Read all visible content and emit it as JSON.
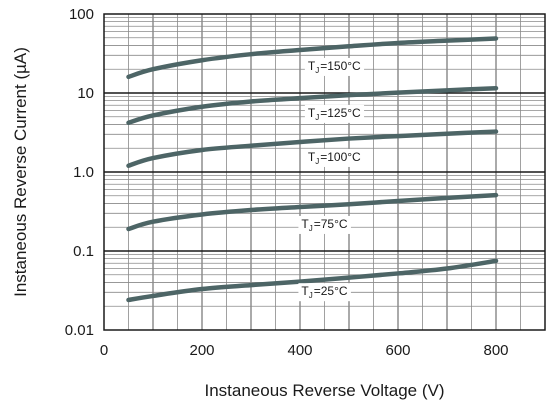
{
  "chart_data": {
    "type": "line",
    "title": "",
    "xlabel": "Instaneous Reverse Voltage (V)",
    "ylabel": "Instaneous Reverse Current (µA)",
    "xlim": [
      0,
      900
    ],
    "ylim": [
      0.01,
      100
    ],
    "yscale": "log",
    "grid": true,
    "x_ticks": [
      0,
      200,
      400,
      600,
      800
    ],
    "x_tick_labels": [
      "0",
      "200",
      "400",
      "600",
      "800"
    ],
    "y_ticks": [
      0.01,
      0.1,
      1,
      10,
      100
    ],
    "y_tick_labels": [
      "0.01",
      "0.1",
      "1.0",
      "10",
      "100"
    ],
    "line_color": "#4d6566",
    "series": [
      {
        "label_main": "T",
        "label_sub": "J",
        "label_rest": "=150°C",
        "label_at_x": 470,
        "label_at_y": 22,
        "x": [
          50,
          100,
          200,
          300,
          400,
          500,
          600,
          700,
          800
        ],
        "y": [
          16,
          20,
          26,
          31,
          35,
          39,
          43,
          46,
          49
        ]
      },
      {
        "label_main": "T",
        "label_sub": "J",
        "label_rest": "=125°C",
        "label_at_x": 470,
        "label_at_y": 5.6,
        "x": [
          50,
          100,
          200,
          300,
          400,
          500,
          600,
          700,
          800
        ],
        "y": [
          4.2,
          5.2,
          6.7,
          7.8,
          8.6,
          9.4,
          10.1,
          10.8,
          11.5
        ]
      },
      {
        "label_main": "T",
        "label_sub": "J",
        "label_rest": "=100°C",
        "label_at_x": 470,
        "label_at_y": 1.55,
        "x": [
          50,
          100,
          200,
          300,
          400,
          500,
          600,
          700,
          800
        ],
        "y": [
          1.2,
          1.5,
          1.9,
          2.15,
          2.4,
          2.65,
          2.85,
          3.05,
          3.25
        ]
      },
      {
        "label_main": "T",
        "label_sub": "J",
        "label_rest": "=75°C",
        "label_at_x": 450,
        "label_at_y": 0.22,
        "x": [
          50,
          100,
          200,
          300,
          400,
          500,
          600,
          700,
          800
        ],
        "y": [
          0.19,
          0.235,
          0.29,
          0.33,
          0.36,
          0.39,
          0.43,
          0.47,
          0.51
        ]
      },
      {
        "label_main": "T",
        "label_sub": "J",
        "label_rest": "=25°C",
        "label_at_x": 450,
        "label_at_y": 0.031,
        "x": [
          50,
          100,
          200,
          300,
          400,
          500,
          600,
          700,
          800
        ],
        "y": [
          0.024,
          0.027,
          0.033,
          0.037,
          0.041,
          0.046,
          0.052,
          0.06,
          0.075
        ]
      }
    ]
  }
}
